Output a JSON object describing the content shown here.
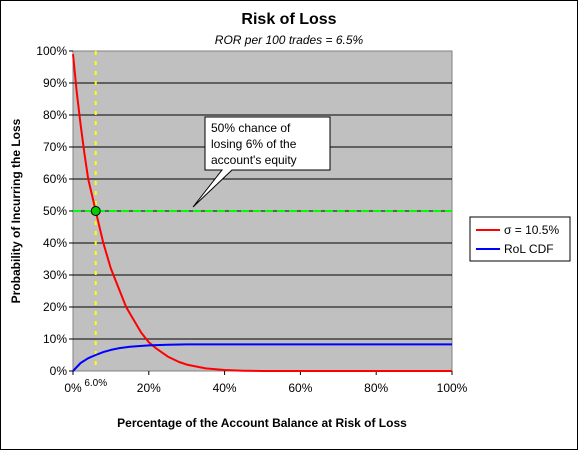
{
  "chart_data": {
    "type": "line",
    "title": "Risk of Loss",
    "subtitle": "ROR per 100 trades = 6.5%",
    "xlabel": "Percentage of the Account Balance at Risk of Loss",
    "ylabel": "Probability of Incurring the Loss",
    "xlim": [
      0,
      100
    ],
    "ylim": [
      0,
      100
    ],
    "x_ticks": [
      "0%",
      "20%",
      "40%",
      "60%",
      "80%",
      "100%"
    ],
    "y_ticks": [
      "0%",
      "10%",
      "20%",
      "30%",
      "40%",
      "50%",
      "60%",
      "70%",
      "80%",
      "90%",
      "100%"
    ],
    "grid": true,
    "plot_background": "#c0c0c0",
    "legend_position": "right",
    "series": [
      {
        "name": "σ = 10.5%",
        "color": "#ff0000",
        "x": [
          0,
          1,
          2,
          3,
          4,
          5,
          6,
          7,
          8,
          10,
          12,
          14,
          16,
          18,
          20,
          22,
          25,
          28,
          30,
          35,
          40,
          45,
          50,
          60,
          70,
          80,
          90,
          100
        ],
        "y": [
          99,
          87,
          77,
          68,
          60,
          55,
          50,
          45,
          40,
          32,
          26,
          20,
          16,
          12,
          9,
          7,
          4.5,
          2.8,
          2,
          0.8,
          0.3,
          0.1,
          0,
          0,
          0,
          0,
          0,
          0
        ]
      },
      {
        "name": "RoL CDF",
        "color": "#0000ff",
        "x": [
          0,
          2,
          4,
          6,
          8,
          10,
          12,
          15,
          20,
          25,
          30,
          40,
          50,
          60,
          80,
          100
        ],
        "y": [
          0,
          2.5,
          4.0,
          5.0,
          5.9,
          6.6,
          7.1,
          7.6,
          8.0,
          8.2,
          8.3,
          8.3,
          8.3,
          8.3,
          8.3,
          8.3
        ]
      }
    ],
    "reference_lines": [
      {
        "orientation": "horizontal",
        "value": 50,
        "color": "#00ff00",
        "style": "dashed"
      },
      {
        "orientation": "vertical",
        "value": 6,
        "color": "#ffff00",
        "style": "dotted",
        "label": "6.0%"
      }
    ],
    "highlight_point": {
      "x": 6,
      "y": 50,
      "color": "#00cc00"
    },
    "annotation": {
      "text_lines": [
        "50% chance of",
        "losing 6% of the",
        "account's equity"
      ]
    }
  }
}
